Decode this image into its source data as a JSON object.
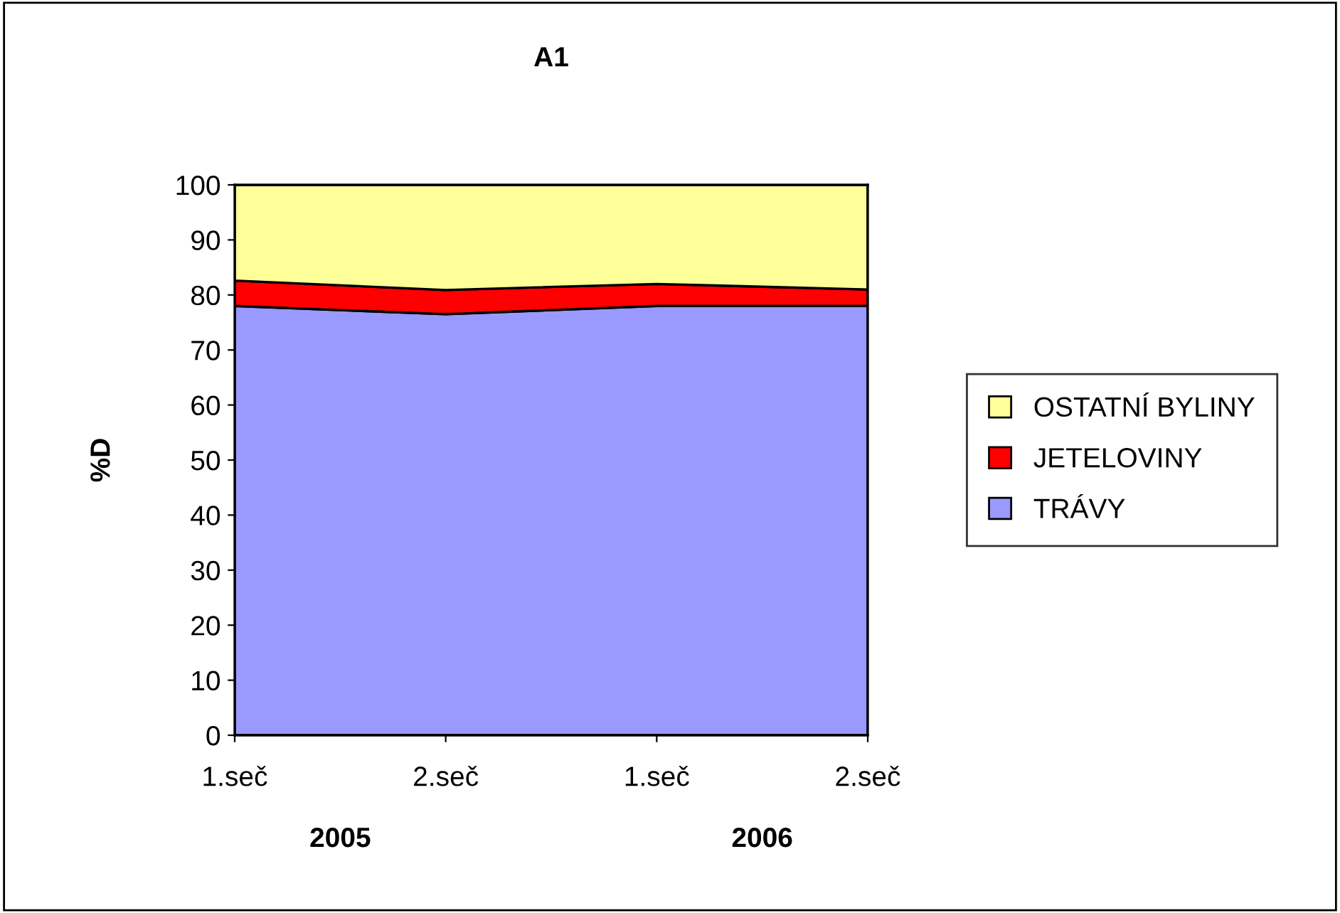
{
  "chart_data": {
    "type": "area",
    "stacked": true,
    "title": "A1",
    "ylabel": "%D",
    "categories": [
      "1.seč",
      "2.seč",
      "1.seč",
      "2.seč"
    ],
    "series": [
      {
        "name": "TRÁVY",
        "color": "#9999ff",
        "values": [
          78,
          76.5,
          78,
          78
        ]
      },
      {
        "name": "JETELOVINY",
        "color": "#ff0000",
        "values": [
          4.6,
          4.4,
          4,
          3
        ]
      },
      {
        "name": "OSTATNÍ BYLINY",
        "color": "#ffff99",
        "values": [
          17.4,
          19.1,
          18,
          19
        ]
      }
    ],
    "ylim": [
      0,
      100
    ],
    "yticks": [
      0,
      10,
      20,
      30,
      40,
      50,
      60,
      70,
      80,
      90,
      100
    ],
    "annotations": [
      "2005",
      "2006"
    ],
    "grid": false,
    "legend": "right"
  }
}
